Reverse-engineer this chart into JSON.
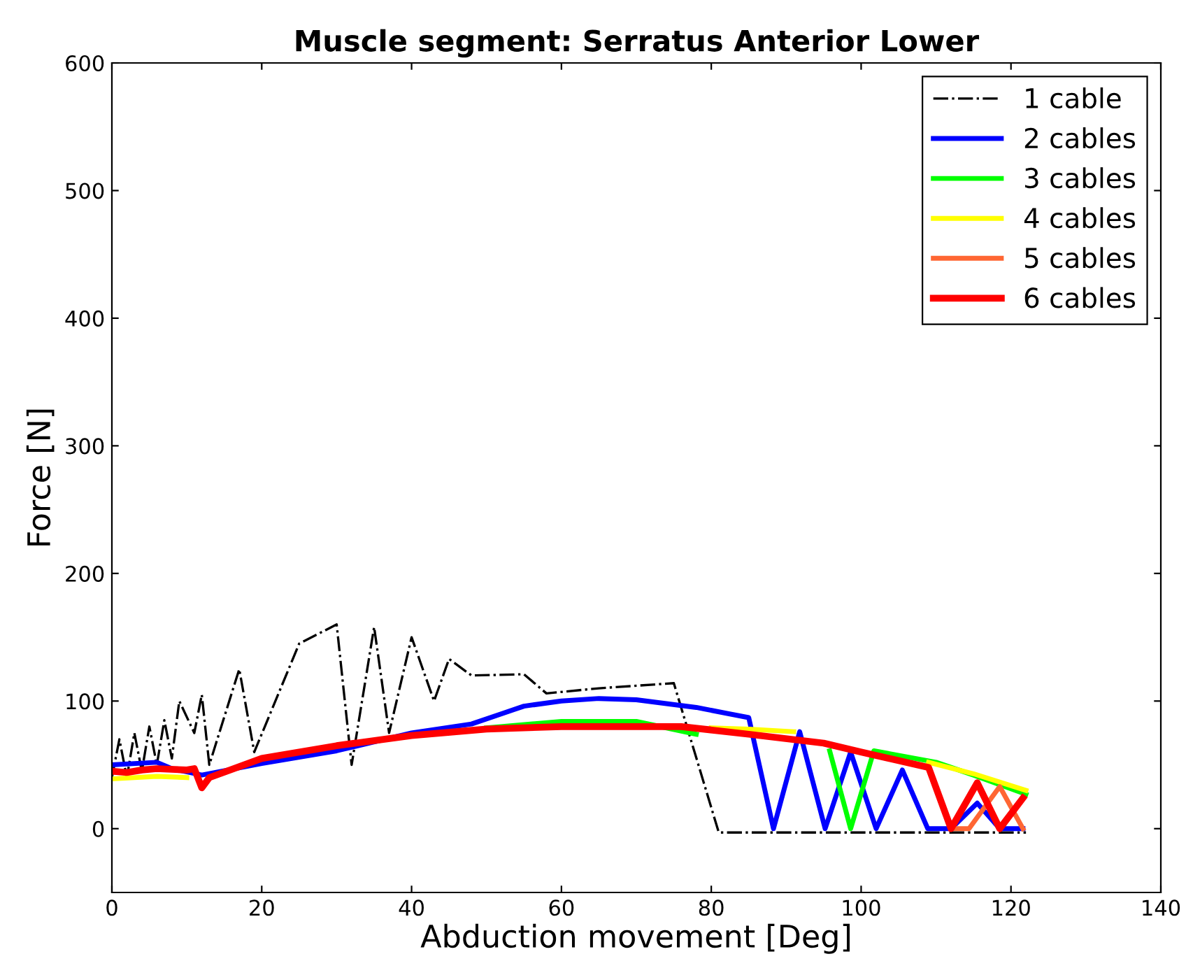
{
  "chart_data": {
    "type": "line",
    "title": "Muscle segment: Serratus Anterior Lower",
    "xlabel": "Abduction movement [Deg]",
    "ylabel": "Force [N]",
    "xlim": [
      0,
      140
    ],
    "ylim": [
      -50,
      600
    ],
    "xticks": [
      0,
      20,
      40,
      60,
      80,
      100,
      120,
      140
    ],
    "yticks": [
      0,
      100,
      200,
      300,
      400,
      500,
      600
    ],
    "grid": false,
    "legend": "top right",
    "marker": "none",
    "series": [
      {
        "name": "1 cable",
        "color": "#000000",
        "line_style": "dashdot",
        "x": [
          0,
          1,
          2,
          3,
          4,
          5,
          6,
          7,
          8,
          9,
          11,
          12,
          13,
          17,
          19,
          25,
          30,
          32,
          35,
          37,
          40,
          43,
          45,
          48,
          55,
          58,
          65,
          75,
          81,
          122
        ],
        "values": [
          40,
          70,
          40,
          75,
          45,
          80,
          50,
          85,
          55,
          100,
          75,
          105,
          50,
          125,
          60,
          145,
          160,
          50,
          158,
          75,
          150,
          100,
          133,
          120,
          121,
          106,
          110,
          114,
          -3,
          -3
        ]
      },
      {
        "name": "2 cables",
        "color": "#0000ff",
        "line_style": "solid",
        "x": [
          0,
          6,
          8,
          12,
          20,
          30,
          40,
          48,
          55,
          60,
          65,
          70,
          78,
          85,
          88.3,
          91.8,
          95.2,
          98.6,
          102,
          105.5,
          108.9,
          112,
          115.5,
          118.5,
          121.6
        ],
        "values": [
          50,
          52,
          47,
          42,
          51,
          61,
          75,
          82,
          96,
          100,
          102,
          101,
          95,
          87,
          0,
          76,
          0,
          60,
          0,
          46,
          0,
          0,
          20,
          0,
          0
        ]
      },
      {
        "name": "3 cables",
        "color": "#00ff00",
        "line_style": "solid",
        "x": [
          50,
          60,
          70,
          78,
          85,
          92,
          95.8,
          98.6,
          101.7,
          110,
          115,
          122
        ],
        "values": [
          79,
          84,
          84,
          74,
          null,
          null,
          61,
          0,
          61,
          52,
          42,
          27
        ]
      },
      {
        "name": "4 cables",
        "color": "#ffff00",
        "line_style": "solid",
        "x": [
          0,
          6,
          10,
          12,
          80,
          85,
          91,
          95,
          109,
          115,
          122
        ],
        "values": [
          39,
          41,
          40,
          null,
          79,
          78,
          76,
          null,
          52,
          43,
          30
        ]
      },
      {
        "name": "5 cables",
        "color": "#ff6633",
        "line_style": "solid",
        "x": [
          112,
          114.4,
          118.5,
          121.6
        ],
        "values": [
          0,
          0,
          33,
          0
        ]
      },
      {
        "name": "6 cables",
        "color": "#ff0000",
        "line_style": "solid",
        "x": [
          0,
          2,
          4,
          6,
          10,
          11,
          12,
          13,
          20,
          30,
          40,
          50,
          60,
          70,
          76,
          85,
          95,
          100,
          109,
          112,
          115.5,
          118.5,
          121.6
        ],
        "values": [
          45,
          44,
          46,
          47,
          46,
          47,
          32,
          40,
          55,
          65,
          73,
          78,
          80,
          80,
          80,
          74,
          67,
          60,
          48,
          0,
          36,
          0,
          24
        ]
      }
    ]
  }
}
